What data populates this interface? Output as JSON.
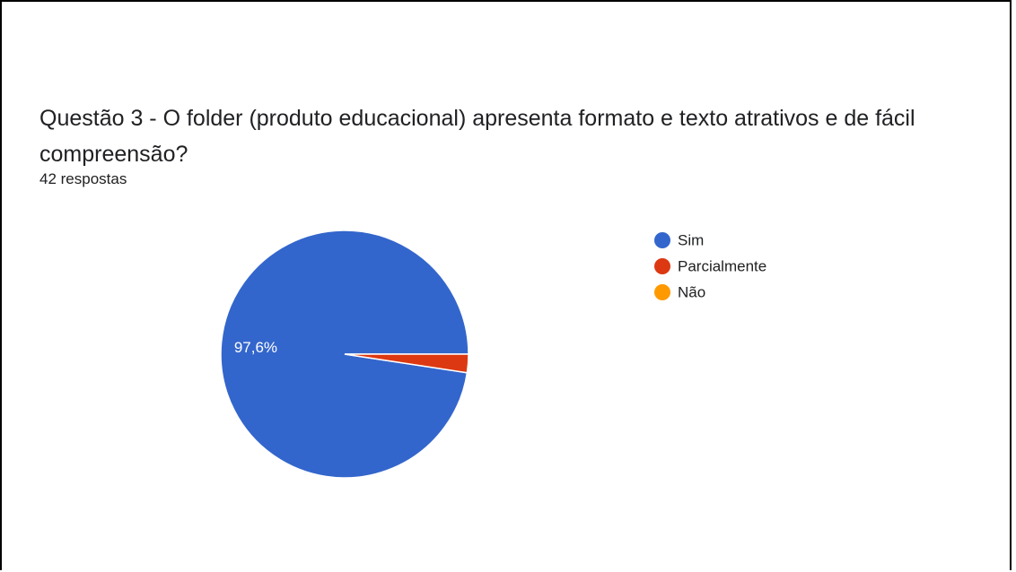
{
  "question": {
    "title": "Questão 3 - O folder (produto educacional) apresenta formato e texto atrativos e de fácil compreensão?",
    "responses": "42 respostas"
  },
  "chart_data": {
    "type": "pie",
    "title": "Questão 3 - O folder (produto educacional) apresenta formato e texto atrativos e de fácil compreensão?",
    "total": 42,
    "categories": [
      "Sim",
      "Parcialmente",
      "Não"
    ],
    "values": [
      97.6,
      2.4,
      0
    ],
    "counts": [
      41,
      1,
      0
    ],
    "colors": [
      "#3366cc",
      "#dc3912",
      "#ff9900"
    ],
    "data_labels": [
      "97,6%",
      "",
      ""
    ],
    "legend_position": "right"
  }
}
